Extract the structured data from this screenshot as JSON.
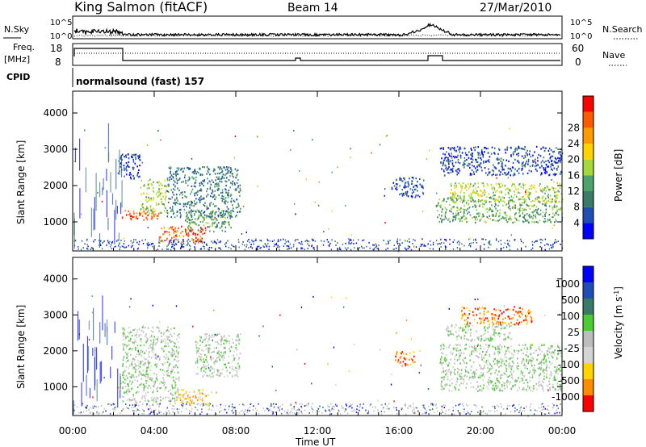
{
  "header": {
    "station": "King Salmon (fitACF)",
    "beam": "Beam 14",
    "date": "27/Mar/2010"
  },
  "top_panels": {
    "nsky_label": "N.Sky",
    "nsky_ticks": [
      "10^5",
      "10^0"
    ],
    "nsearch_label": "N.Search",
    "nsearch_ticks": [
      "10^5",
      "10^0"
    ],
    "freq_label_line1": "Freq.",
    "freq_label_line2": "[MHz]",
    "freq_ticks": [
      "18",
      "8"
    ],
    "nave_label": "Nave",
    "nave_ticks": [
      "60",
      "0"
    ],
    "cpid_label": "CPID",
    "cpid_text": "normalsound (fast) 157"
  },
  "colors": {
    "power": [
      "#0000ff",
      "#1f4fb4",
      "#3a7a66",
      "#4ca36b",
      "#a6d83a",
      "#ffd400",
      "#ff9a00",
      "#ff5a00",
      "#ff0000"
    ],
    "velocity": [
      "#0000ff",
      "#1f4fb4",
      "#3a7a66",
      "#4ccc33",
      "#bdbdbd",
      "#d4d4d4",
      "#ffd400",
      "#ff8c00",
      "#ff0000"
    ],
    "ground_scatter": "#bcbcbc"
  },
  "chart_data": [
    {
      "type": "heatmap",
      "name": "power",
      "xlabel": "",
      "ylabel": "Slant Range [km]",
      "xlim": [
        0,
        24
      ],
      "ylim": [
        200,
        4600
      ],
      "yticks": [
        "1000",
        "2000",
        "3000",
        "4000"
      ],
      "colorbar_label": "Power [dB]",
      "colorbar_ticks": [
        "4",
        "8",
        "12",
        "16",
        "20",
        "24",
        "28"
      ],
      "regions": [
        {
          "t0": 2.4,
          "t1": 4.2,
          "r0": 1050,
          "r1": 1350,
          "level": 7
        },
        {
          "t0": 3.3,
          "t1": 4.6,
          "r0": 1250,
          "r1": 2200,
          "level": 4
        },
        {
          "t0": 4.2,
          "t1": 6.5,
          "r0": 450,
          "r1": 900,
          "level": 7
        },
        {
          "t0": 5.5,
          "t1": 7.8,
          "r0": 750,
          "r1": 1350,
          "level": 3
        },
        {
          "t0": 4.6,
          "t1": 8.2,
          "r0": 1150,
          "r1": 2550,
          "level": 2
        },
        {
          "t0": 2.2,
          "t1": 3.3,
          "r0": 2200,
          "r1": 2900,
          "level": 1
        },
        {
          "t0": 15.6,
          "t1": 17.2,
          "r0": 1700,
          "r1": 2250,
          "level": 1
        },
        {
          "t0": 17.8,
          "t1": 24.0,
          "r0": 1000,
          "r1": 1700,
          "level": 3
        },
        {
          "t0": 18.5,
          "t1": 24.0,
          "r0": 1550,
          "r1": 2100,
          "level": 4
        },
        {
          "t0": 18.0,
          "t1": 24.0,
          "r0": 2300,
          "r1": 3100,
          "level": 1
        }
      ]
    },
    {
      "type": "heatmap",
      "name": "velocity",
      "xlabel": "Time UT",
      "ylabel": "Slant Range [km]",
      "xlim": [
        0,
        24
      ],
      "ylim": [
        200,
        4600
      ],
      "xticks": [
        "00:00",
        "04:00",
        "08:00",
        "12:00",
        "16:00",
        "20:00",
        "00:00"
      ],
      "yticks": [
        "1000",
        "2000",
        "3000",
        "4000"
      ],
      "colorbar_label": "Velocity [m s^-1]",
      "colorbar_ticks": [
        "1000",
        "500",
        "100",
        "25",
        "-25",
        "-100",
        "-500",
        "-1000"
      ],
      "regions": [
        {
          "t0": 2.4,
          "t1": 5.2,
          "r0": 600,
          "r1": 2700,
          "level": 4
        },
        {
          "t0": 5.0,
          "t1": 6.8,
          "r0": 500,
          "r1": 950,
          "level": 6
        },
        {
          "t0": 6.0,
          "t1": 8.2,
          "r0": 1300,
          "r1": 2500,
          "level": 4
        },
        {
          "t0": 15.8,
          "t1": 16.8,
          "r0": 1600,
          "r1": 2000,
          "level": 7
        },
        {
          "t0": 18.0,
          "t1": 24.0,
          "r0": 900,
          "r1": 2200,
          "level": 4
        },
        {
          "t0": 19.0,
          "t1": 22.5,
          "r0": 2750,
          "r1": 3250,
          "level": 7
        },
        {
          "t0": 18.3,
          "t1": 21.5,
          "r0": 2300,
          "r1": 2750,
          "level": 4
        }
      ]
    }
  ]
}
